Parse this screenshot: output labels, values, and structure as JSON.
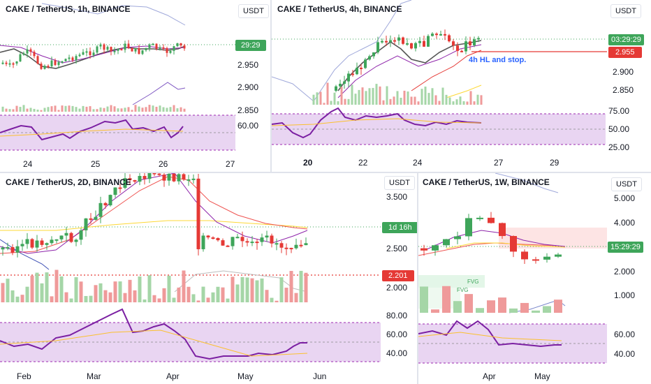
{
  "panels": [
    {
      "title": "CAKE / TetherUS, 1h, BINANCE",
      "currency": "USDT",
      "yticks": [
        "2.950",
        "2.900",
        "2.850"
      ],
      "rsi_ticks": [
        "60.00"
      ],
      "xticks": [
        "24",
        "25",
        "26",
        "27"
      ],
      "badges": [
        {
          "text": "29:29",
          "color": "#3ea55a"
        }
      ]
    },
    {
      "title": "CAKE / TetherUS, 4h, BINANCE",
      "currency": "USDT",
      "yticks": [
        "2.900",
        "2.850"
      ],
      "rsi_ticks": [
        "75.00",
        "50.00",
        "25.00"
      ],
      "xticks": [
        "20",
        "22",
        "24",
        "27",
        "29"
      ],
      "badges": [
        {
          "text": "03:29:29",
          "color": "#3ea55a"
        },
        {
          "text": "2.955",
          "color": "#e53935"
        }
      ],
      "annotation": "4h HL and stop."
    },
    {
      "title": "CAKE / TetherUS, 2D, BINANCE",
      "currency": "USDT",
      "yticks": [
        "3.500",
        "2.500",
        "2.000"
      ],
      "rsi_ticks": [
        "80.00",
        "60.00",
        "40.00"
      ],
      "xticks": [
        "Feb",
        "Mar",
        "Apr",
        "May",
        "Jun"
      ],
      "badges": [
        {
          "text": "1d 16h",
          "color": "#3ea55a"
        },
        {
          "text": "2.201",
          "color": "#e53935"
        }
      ]
    },
    {
      "title": "CAKE / TetherUS, 1W, BINANCE",
      "currency": "USDT",
      "yticks": [
        "5.000",
        "4.000",
        "2.000",
        "1.000"
      ],
      "rsi_ticks": [
        "60.00",
        "40.00"
      ],
      "xticks": [
        "Apr",
        "May"
      ],
      "badges": [
        {
          "text": "15:29:29",
          "color": "#3ea55a"
        }
      ],
      "labels": [
        "FVG",
        "FVG"
      ]
    }
  ],
  "colors": {
    "up": "#3ea55a",
    "down": "#e53935",
    "rsi": "#7b1fa2",
    "rsi_bg": "#e9d5f2"
  }
}
